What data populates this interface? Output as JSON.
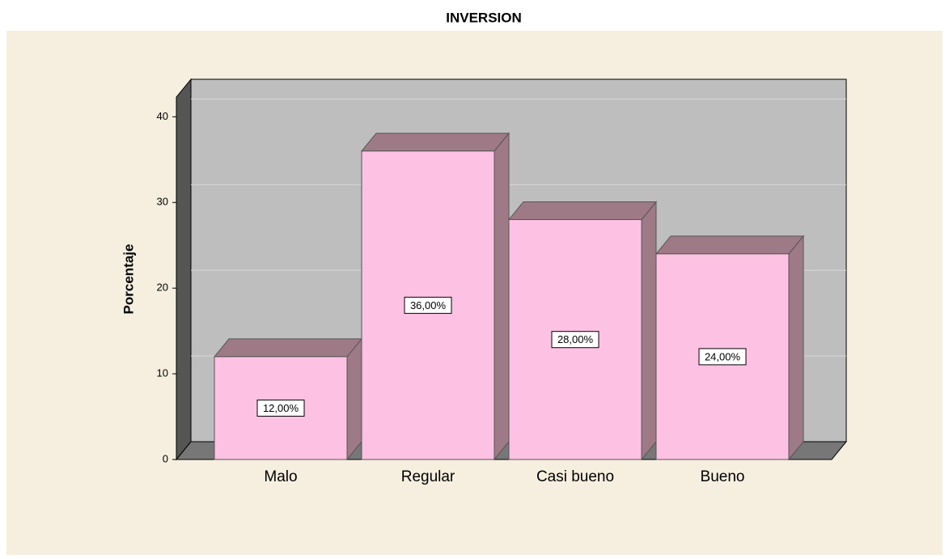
{
  "chart_data": {
    "type": "bar3d",
    "title": "INVERSION",
    "ylabel": "Porcentaje",
    "categories": [
      "Malo",
      "Regular",
      "Casi bueno",
      "Bueno"
    ],
    "values": [
      12,
      36,
      28,
      24
    ],
    "value_labels": [
      "12,00%",
      "36,00%",
      "28,00%",
      "24,00%"
    ],
    "color": "#fdc1e3",
    "ylim": [
      0,
      42.3
    ],
    "yticks": [
      0,
      10,
      20,
      30,
      40
    ],
    "grid": true
  }
}
